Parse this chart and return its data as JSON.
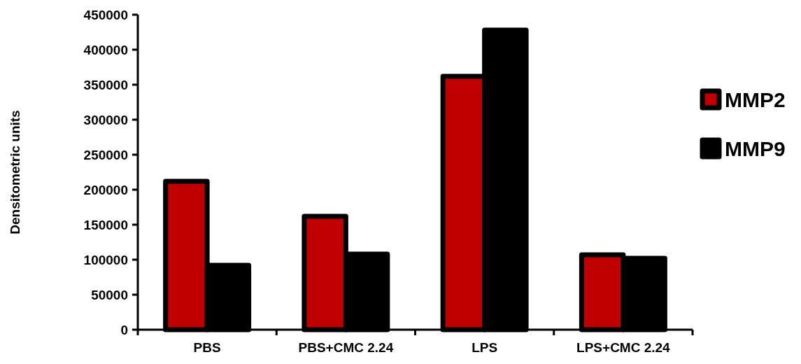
{
  "chart_data": {
    "type": "bar",
    "ylabel": "Densitometric units",
    "categories": [
      "PBS",
      "PBS+CMC 2.24",
      "LPS",
      "LPS+CMC 2.24"
    ],
    "series": [
      {
        "name": "MMP2",
        "color": "#c00000",
        "values": [
          212000,
          162000,
          362000,
          107000
        ]
      },
      {
        "name": "MMP9",
        "color": "#000000",
        "values": [
          92000,
          108000,
          428000,
          102000
        ]
      }
    ],
    "ylim": [
      0,
      450000
    ],
    "yticks": [
      0,
      50000,
      100000,
      150000,
      200000,
      250000,
      300000,
      350000,
      400000,
      450000
    ],
    "grid": false,
    "legend": "right"
  }
}
